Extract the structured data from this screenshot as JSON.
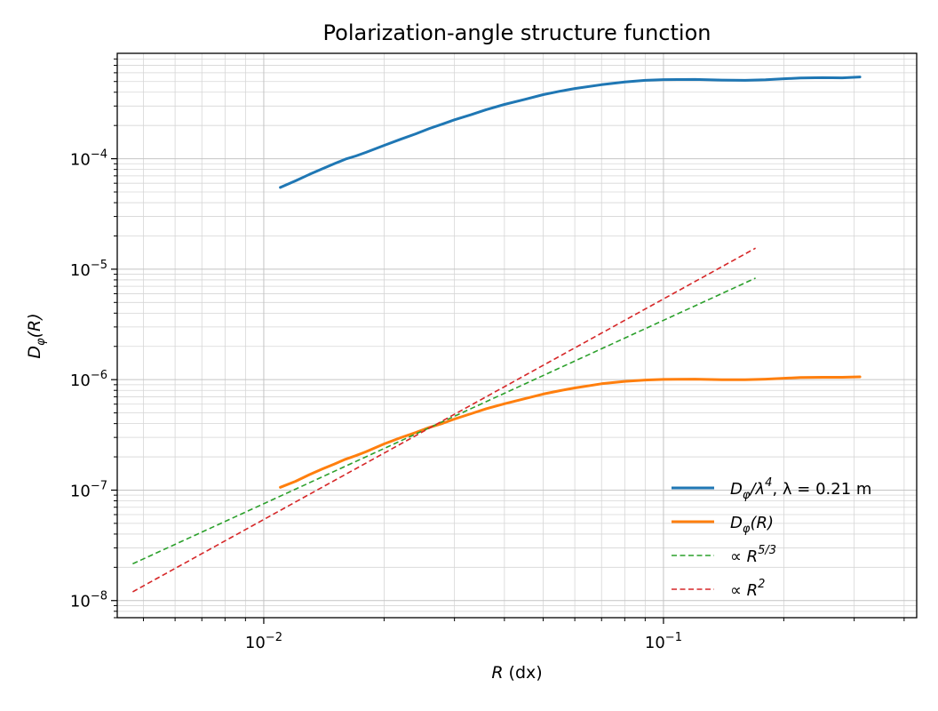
{
  "chart_data": {
    "type": "line",
    "title": "Polarization-angle structure function",
    "xlabel_italic": "R",
    "xlabel_rest": " (dx)",
    "ylabel_main": "D",
    "ylabel_sub": "φ",
    "ylabel_arg": "(R)",
    "x_scale": "log",
    "y_scale": "log",
    "xlim": [
      0.0043,
      0.43
    ],
    "ylim": [
      7e-09,
      0.0009
    ],
    "grid": "both (major and minor)",
    "legend_position": "lower right",
    "x_ticks": [
      {
        "value": 0.01,
        "base": "10",
        "exp": "−2"
      },
      {
        "value": 0.1,
        "base": "10",
        "exp": "−1"
      }
    ],
    "y_ticks": [
      {
        "value": 1e-08,
        "base": "10",
        "exp": "−8"
      },
      {
        "value": 1e-07,
        "base": "10",
        "exp": "−7"
      },
      {
        "value": 1e-06,
        "base": "10",
        "exp": "−6"
      },
      {
        "value": 1e-05,
        "base": "10",
        "exp": "−5"
      },
      {
        "value": 0.0001,
        "base": "10",
        "exp": "−4"
      }
    ],
    "series": [
      {
        "name": "D_φ/λ⁴, λ = 0.21 m",
        "legend_parts": {
          "a": "D",
          "a_sub": "φ",
          "b": "/λ",
          "b_sup": "4",
          "c": ", λ = 0.21 m"
        },
        "color": "#1f77b4",
        "style": "solid",
        "x": [
          0.011,
          0.012,
          0.013,
          0.014,
          0.015,
          0.016,
          0.017,
          0.018,
          0.02,
          0.022,
          0.024,
          0.026,
          0.028,
          0.03,
          0.033,
          0.036,
          0.04,
          0.045,
          0.05,
          0.055,
          0.06,
          0.07,
          0.08,
          0.09,
          0.1,
          0.12,
          0.14,
          0.16,
          0.18,
          0.2,
          0.22,
          0.25,
          0.28,
          0.31
        ],
        "y": [
          5.5e-05,
          6.3e-05,
          7.2e-05,
          8.1e-05,
          9e-05,
          9.9e-05,
          0.000106,
          0.000114,
          0.000132,
          0.00015,
          0.000168,
          0.000188,
          0.000206,
          0.000225,
          0.00025,
          0.000278,
          0.00031,
          0.000345,
          0.00038,
          0.000408,
          0.000432,
          0.000468,
          0.000495,
          0.000512,
          0.00052,
          0.000522,
          0.000515,
          0.000512,
          0.000518,
          0.00053,
          0.000538,
          0.000542,
          0.00054,
          0.00055
        ]
      },
      {
        "name": "D_φ(R)",
        "legend_parts": {
          "a": "D",
          "a_sub": "φ",
          "b": "(R)",
          "b_sup": "",
          "c": ""
        },
        "color": "#ff7f0e",
        "style": "solid",
        "x": [
          0.011,
          0.012,
          0.013,
          0.014,
          0.015,
          0.016,
          0.017,
          0.018,
          0.02,
          0.022,
          0.024,
          0.026,
          0.028,
          0.03,
          0.033,
          0.036,
          0.04,
          0.045,
          0.05,
          0.055,
          0.06,
          0.07,
          0.08,
          0.09,
          0.1,
          0.12,
          0.14,
          0.16,
          0.18,
          0.2,
          0.22,
          0.25,
          0.28,
          0.31
        ],
        "y": [
          1.06e-07,
          1.2e-07,
          1.38e-07,
          1.55e-07,
          1.72e-07,
          1.9e-07,
          2.05e-07,
          2.22e-07,
          2.62e-07,
          2.98e-07,
          3.32e-07,
          3.7e-07,
          4.02e-07,
          4.4e-07,
          4.92e-07,
          5.45e-07,
          6.05e-07,
          6.72e-07,
          7.4e-07,
          7.95e-07,
          8.42e-07,
          9.18e-07,
          9.65e-07,
          9.92e-07,
          1.005e-06,
          1.01e-06,
          1e-06,
          9.98e-07,
          1.01e-06,
          1.03e-06,
          1.045e-06,
          1.05e-06,
          1.05e-06,
          1.06e-06
        ]
      },
      {
        "name": "∝R^{5/3}",
        "legend_parts": {
          "a": "∝ R",
          "a_sub": "",
          "b": "",
          "b_sup": "5/3",
          "c": ""
        },
        "color": "#2ca02c",
        "style": "dashed",
        "x": [
          0.0047,
          0.17
        ],
        "y": [
          2.15e-08,
          8.3e-06
        ]
      },
      {
        "name": "∝R^2",
        "legend_parts": {
          "a": "∝ R",
          "a_sub": "",
          "b": "",
          "b_sup": "2",
          "c": ""
        },
        "color": "#d62728",
        "style": "dashed",
        "x": [
          0.0047,
          0.17
        ],
        "y": [
          1.2e-08,
          1.55e-05
        ]
      }
    ]
  }
}
